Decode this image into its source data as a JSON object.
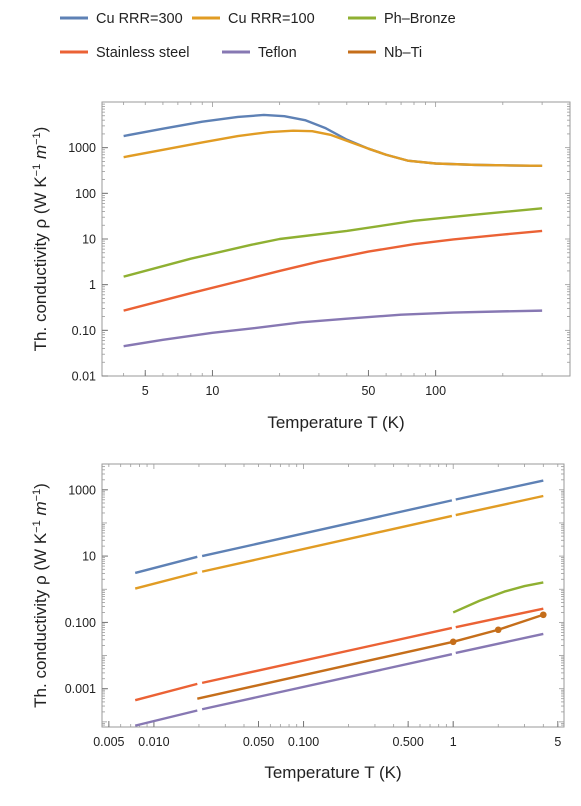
{
  "legend": [
    {
      "name": "Cu RRR=300",
      "color": "#5e81b5"
    },
    {
      "name": "Cu RRR=100",
      "color": "#e19c24"
    },
    {
      "name": "Ph–Bronze",
      "color": "#8fb032"
    },
    {
      "name": "Stainless steel",
      "color": "#eb6235"
    },
    {
      "name": "Teflon",
      "color": "#8778b3"
    },
    {
      "name": "Nb–Ti",
      "color": "#c56e1a"
    }
  ],
  "chart_data": [
    {
      "type": "line",
      "xscale": "log",
      "yscale": "log",
      "xlabel": "Temperature T (K)",
      "ylabel_main": "Th. conductivity ρ (W K",
      "ylabel_sup1": "−1",
      "ylabel_mid": " m",
      "ylabel_sup2": "−1",
      "ylabel_end": ")",
      "xlim": [
        3.2,
        400
      ],
      "ylim": [
        0.01,
        10000
      ],
      "xticks": [
        {
          "v": 5,
          "label": "5"
        },
        {
          "v": 10,
          "label": "10"
        },
        {
          "v": 50,
          "label": "50"
        },
        {
          "v": 100,
          "label": "100"
        }
      ],
      "yticks": [
        {
          "v": 0.01,
          "label": "0.01"
        },
        {
          "v": 0.1,
          "label": "0.10"
        },
        {
          "v": 1,
          "label": "1"
        },
        {
          "v": 10,
          "label": "10"
        },
        {
          "v": 100,
          "label": "100"
        },
        {
          "v": 1000,
          "label": "1000"
        }
      ],
      "series": [
        {
          "name": "Cu RRR=300",
          "color": "#5e81b5",
          "points": [
            [
              4,
              1800
            ],
            [
              6,
              2600
            ],
            [
              9,
              3700
            ],
            [
              13,
              4700
            ],
            [
              17,
              5200
            ],
            [
              21,
              4900
            ],
            [
              26,
              4000
            ],
            [
              32,
              2700
            ],
            [
              40,
              1500
            ],
            [
              50,
              950
            ],
            [
              60,
              700
            ],
            [
              75,
              520
            ],
            [
              100,
              450
            ],
            [
              150,
              420
            ],
            [
              200,
              410
            ],
            [
              300,
              400
            ]
          ]
        },
        {
          "name": "Cu RRR=100",
          "color": "#e19c24",
          "points": [
            [
              4,
              620
            ],
            [
              6,
              900
            ],
            [
              9,
              1300
            ],
            [
              13,
              1800
            ],
            [
              18,
              2200
            ],
            [
              23,
              2350
            ],
            [
              28,
              2300
            ],
            [
              34,
              1900
            ],
            [
              42,
              1300
            ],
            [
              50,
              950
            ],
            [
              60,
              700
            ],
            [
              75,
              520
            ],
            [
              100,
              450
            ],
            [
              150,
              420
            ],
            [
              200,
              410
            ],
            [
              300,
              400
            ]
          ]
        },
        {
          "name": "Ph–Bronze",
          "color": "#8fb032",
          "points": [
            [
              4,
              1.5
            ],
            [
              8,
              3.7
            ],
            [
              15,
              7.5
            ],
            [
              20,
              10
            ],
            [
              40,
              15
            ],
            [
              80,
              25
            ],
            [
              150,
              34
            ],
            [
              300,
              47
            ]
          ]
        },
        {
          "name": "Stainless steel",
          "color": "#eb6235",
          "points": [
            [
              4,
              0.27
            ],
            [
              8,
              0.65
            ],
            [
              15,
              1.4
            ],
            [
              20,
              2
            ],
            [
              30,
              3.2
            ],
            [
              50,
              5.3
            ],
            [
              80,
              7.7
            ],
            [
              120,
              9.8
            ],
            [
              200,
              12.5
            ],
            [
              300,
              15
            ]
          ]
        },
        {
          "name": "Teflon",
          "color": "#8778b3",
          "points": [
            [
              4,
              0.045
            ],
            [
              6,
              0.062
            ],
            [
              10,
              0.088
            ],
            [
              15,
              0.11
            ],
            [
              25,
              0.15
            ],
            [
              40,
              0.18
            ],
            [
              70,
              0.22
            ],
            [
              120,
              0.245
            ],
            [
              200,
              0.26
            ],
            [
              300,
              0.27
            ]
          ]
        }
      ]
    },
    {
      "type": "line",
      "xscale": "log",
      "yscale": "log",
      "xlabel": "Temperature T (K)",
      "ylabel_main": "Th. conductivity ρ (W K",
      "ylabel_sup1": "−1",
      "ylabel_mid": " m",
      "ylabel_sup2": "−1",
      "ylabel_end": ")",
      "xlim": [
        0.0045,
        5.5
      ],
      "ylim": [
        7e-05,
        6000
      ],
      "xticks": [
        {
          "v": 0.005,
          "label": "0.005"
        },
        {
          "v": 0.01,
          "label": "0.010"
        },
        {
          "v": 0.05,
          "label": "0.050"
        },
        {
          "v": 0.1,
          "label": "0.100"
        },
        {
          "v": 0.5,
          "label": "0.500"
        },
        {
          "v": 1,
          "label": "1"
        },
        {
          "v": 5,
          "label": "5"
        }
      ],
      "yticks": [
        {
          "v": 0.001,
          "label": "0.001"
        },
        {
          "v": 0.1,
          "label": "0.100"
        },
        {
          "v": 10,
          "label": "10"
        },
        {
          "v": 1000,
          "label": "1000"
        }
      ],
      "series": [
        {
          "name": "Cu RRR=300",
          "color": "#5e81b5",
          "segments": [
            [
              [
                0.0075,
                3.1
              ],
              [
                0.0195,
                9.5
              ]
            ],
            [
              [
                0.021,
                10
              ],
              [
                0.98,
                480
              ]
            ],
            [
              [
                1.04,
                510
              ],
              [
                4,
                1900
              ]
            ]
          ]
        },
        {
          "name": "Cu RRR=100",
          "color": "#e19c24",
          "segments": [
            [
              [
                0.0075,
                1.05
              ],
              [
                0.0195,
                3.2
              ]
            ],
            [
              [
                0.021,
                3.4
              ],
              [
                0.98,
                163
              ]
            ],
            [
              [
                1.04,
                173
              ],
              [
                4,
                650
              ]
            ]
          ]
        },
        {
          "name": "Ph–Bronze",
          "color": "#8fb032",
          "segments": [
            [
              [
                1,
                0.2
              ],
              [
                1.5,
                0.45
              ],
              [
                2.2,
                0.85
              ],
              [
                3,
                1.25
              ],
              [
                4,
                1.6
              ]
            ]
          ]
        },
        {
          "name": "Stainless steel",
          "color": "#eb6235",
          "segments": [
            [
              [
                0.0075,
                0.00045
              ],
              [
                0.0195,
                0.0014
              ]
            ],
            [
              [
                0.021,
                0.0015
              ],
              [
                0.98,
                0.068
              ]
            ],
            [
              [
                1.04,
                0.072
              ],
              [
                4,
                0.26
              ]
            ]
          ]
        },
        {
          "name": "Nb–Ti",
          "color": "#c56e1a",
          "segments": [
            [
              [
                0.0195,
                0.0005
              ],
              [
                1,
                0.026
              ]
            ],
            [
              [
                1,
                0.026
              ],
              [
                2,
                0.06
              ]
            ],
            [
              [
                2,
                0.06
              ],
              [
                4,
                0.17
              ]
            ]
          ],
          "markers": [
            [
              1,
              0.026
            ],
            [
              2,
              0.06
            ],
            [
              4,
              0.17
            ]
          ]
        },
        {
          "name": "Teflon",
          "color": "#8778b3",
          "segments": [
            [
              [
                0.0075,
                7.7e-05
              ],
              [
                0.0195,
                0.00022
              ]
            ],
            [
              [
                0.021,
                0.00024
              ],
              [
                0.98,
                0.011
              ]
            ],
            [
              [
                1.04,
                0.012
              ],
              [
                4,
                0.045
              ]
            ]
          ]
        }
      ]
    }
  ]
}
